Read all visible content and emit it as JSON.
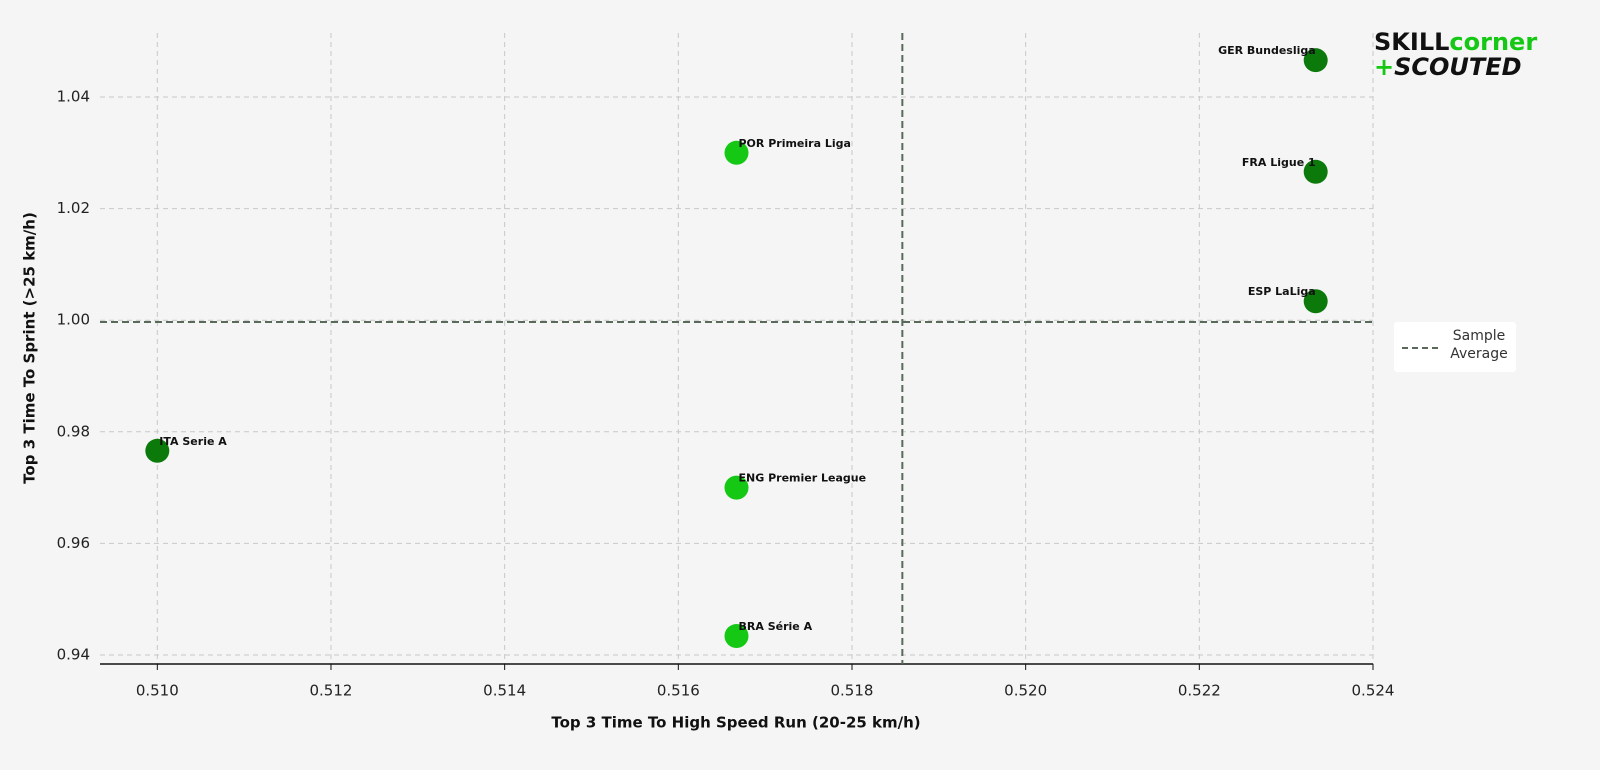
{
  "chart_data": {
    "type": "scatter",
    "x_label": "Top 3 Time To High Speed Run (20-25 km/h)",
    "y_label": "Top 3 Time To Sprint (>25 km/h)",
    "labels": [
      "GER Bundesliga",
      "FRA Ligue 1",
      "ESP LaLiga",
      "POR Primeira Liga",
      "ITA Serie A",
      "ENG Premier League",
      "BRA Série A"
    ],
    "x": [
      0.52334,
      0.52334,
      0.52334,
      0.51667,
      0.51,
      0.51667,
      0.51667
    ],
    "y": [
      1.0466,
      1.0266,
      1.0034,
      1.03,
      0.9766,
      0.97,
      0.9434
    ],
    "colors": [
      "#0b7a0b",
      "#0b7a0b",
      "#0b7a0b",
      "#14c814",
      "#0b7a0b",
      "#14c814",
      "#14c814"
    ],
    "reference_lines": {
      "x": 0.51858,
      "y": 0.99968,
      "label": "Sample Average",
      "color": "#5a6a5a"
    },
    "xlim": [
      0.50934,
      0.524
    ],
    "ylim": [
      0.93839,
      1.05147
    ],
    "xticks": [
      {
        "value": 0.51,
        "label": "0.510"
      },
      {
        "value": 0.512,
        "label": "0.512"
      },
      {
        "value": 0.514,
        "label": "0.514"
      },
      {
        "value": 0.516,
        "label": "0.516"
      },
      {
        "value": 0.518,
        "label": "0.518"
      },
      {
        "value": 0.52,
        "label": "0.520"
      },
      {
        "value": 0.522,
        "label": "0.522"
      },
      {
        "value": 0.524,
        "label": "0.524"
      }
    ],
    "yticks": [
      0.94,
      0.96,
      0.98,
      {
        "value": 1.0,
        "label": "1.00"
      },
      1.02,
      1.04
    ],
    "grid": true,
    "legend_position": "right"
  },
  "logo": {
    "part1": "SKILL",
    "part2": "corner",
    "part3": "+",
    "part4": "SCOUTED"
  }
}
